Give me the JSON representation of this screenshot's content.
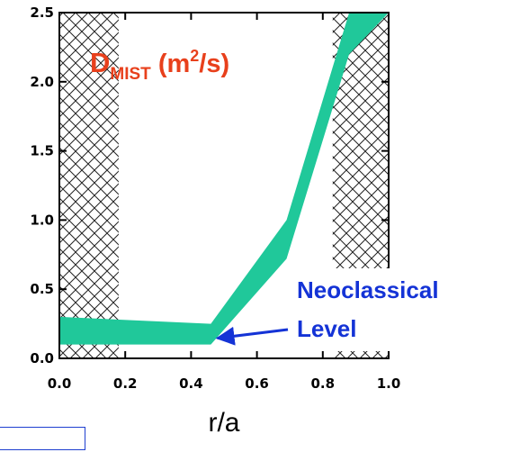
{
  "chart_data": {
    "type": "area",
    "title": {
      "main": "D",
      "sub": "MIST",
      "units_open": " (m",
      "units_sup": "2",
      "units_close": "/s)"
    },
    "xlabel": "r/a",
    "ylabel": "",
    "xlim": [
      0.0,
      1.0
    ],
    "ylim": [
      0.0,
      2.5
    ],
    "x_ticks": [
      "0.0",
      "0.2",
      "0.4",
      "0.6",
      "0.8",
      "1.0"
    ],
    "y_ticks": [
      "0.0",
      "0.5",
      "1.0",
      "1.5",
      "2.0",
      "2.5"
    ],
    "series": [
      {
        "color": "#20c89a",
        "x": [
          0.0,
          0.46,
          0.69,
          0.88,
          1.0
        ],
        "upper": [
          0.3,
          0.25,
          1.0,
          2.5,
          2.5
        ],
        "lower": [
          0.1,
          0.1,
          0.72,
          2.2,
          2.5
        ]
      }
    ],
    "hatched_regions_x": [
      [
        0.0,
        0.18
      ],
      [
        0.83,
        1.0
      ]
    ],
    "annotation": {
      "line1": "Neoclassical",
      "line2": "Level",
      "arrow_to": [
        0.48,
        0.12
      ]
    }
  }
}
